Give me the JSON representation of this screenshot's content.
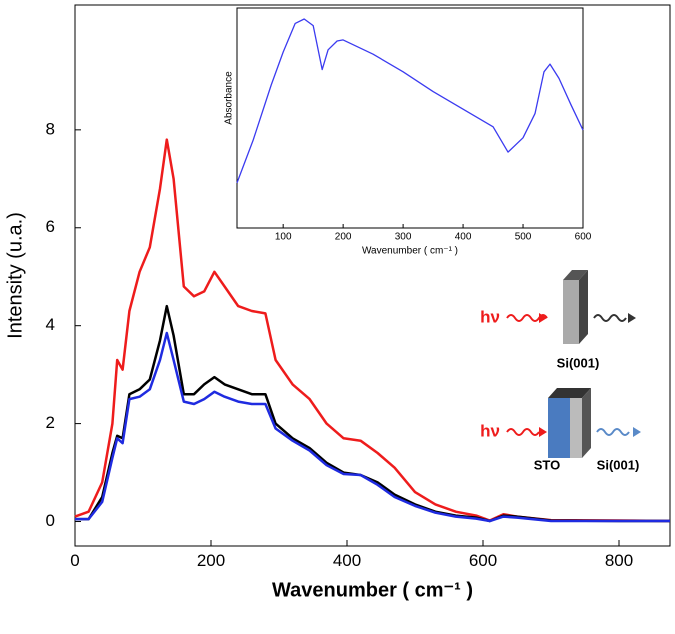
{
  "chart_data": [
    {
      "type": "line",
      "x_label": "Wavenumber ( cm⁻¹ )",
      "y_label": "Intensity (u.a.)",
      "x": [
        0,
        20,
        40,
        55,
        62,
        70,
        80,
        95,
        110,
        125,
        135,
        145,
        160,
        175,
        190,
        205,
        220,
        240,
        260,
        280,
        295,
        320,
        345,
        370,
        395,
        420,
        445,
        470,
        500,
        530,
        560,
        590,
        610,
        630,
        650,
        700,
        800,
        875
      ],
      "series": [
        {
          "color": "#ee1c1c",
          "values": [
            0.1,
            0.2,
            0.8,
            2.0,
            3.3,
            3.1,
            4.3,
            5.1,
            5.6,
            6.8,
            7.8,
            7.0,
            4.8,
            4.6,
            4.7,
            5.1,
            4.8,
            4.4,
            4.3,
            4.25,
            3.3,
            2.8,
            2.5,
            2.0,
            1.7,
            1.65,
            1.4,
            1.1,
            0.6,
            0.35,
            0.2,
            0.12,
            0.02,
            0.15,
            0.1,
            0.03,
            0.02,
            0.01
          ]
        },
        {
          "color": "#000000",
          "values": [
            0.05,
            0.05,
            0.5,
            1.4,
            1.75,
            1.7,
            2.6,
            2.7,
            2.9,
            3.7,
            4.4,
            3.8,
            2.6,
            2.6,
            2.8,
            2.95,
            2.8,
            2.7,
            2.6,
            2.6,
            2.0,
            1.7,
            1.5,
            1.2,
            1.0,
            0.95,
            0.8,
            0.55,
            0.35,
            0.2,
            0.12,
            0.08,
            0.01,
            0.12,
            0.1,
            0.02,
            0.01,
            0.01
          ]
        },
        {
          "color": "#1f2be0",
          "values": [
            0.05,
            0.05,
            0.4,
            1.3,
            1.7,
            1.6,
            2.5,
            2.55,
            2.7,
            3.3,
            3.85,
            3.3,
            2.45,
            2.4,
            2.5,
            2.65,
            2.55,
            2.45,
            2.4,
            2.4,
            1.9,
            1.65,
            1.45,
            1.15,
            0.97,
            0.95,
            0.75,
            0.5,
            0.32,
            0.18,
            0.1,
            0.06,
            0.01,
            0.1,
            0.08,
            0.01,
            0.01,
            0.01
          ]
        }
      ],
      "xlim": [
        0,
        875
      ],
      "ylim": [
        -0.5,
        10.55
      ],
      "xticks": [
        0,
        200,
        400,
        600,
        800
      ],
      "yticks": [
        0,
        2,
        4,
        6,
        8
      ],
      "annotations": [
        "hν",
        "Si(001)",
        "hν",
        "STO",
        "Si(001)"
      ]
    },
    {
      "type": "line",
      "x_label": "Wavenumber ( cm⁻¹ )",
      "y_label": "Absorbance",
      "x": [
        23,
        50,
        80,
        100,
        120,
        135,
        150,
        165,
        175,
        190,
        200,
        250,
        300,
        350,
        400,
        450,
        475,
        500,
        520,
        535,
        545,
        560,
        580,
        600
      ],
      "series": [
        {
          "color": "#3b3bf0",
          "values": [
            2.05,
            4,
            6.5,
            8,
            9.3,
            9.5,
            9.2,
            7.2,
            8.1,
            8.5,
            8.55,
            7.9,
            7.1,
            6.2,
            5.4,
            4.6,
            3.45,
            4.1,
            5.2,
            7.1,
            7.45,
            6.8,
            5.6,
            4.45
          ]
        }
      ],
      "xlim": [
        23,
        600
      ],
      "ylim": [
        0,
        10
      ],
      "xticks": [
        100,
        200,
        300,
        400,
        500,
        600
      ]
    }
  ]
}
